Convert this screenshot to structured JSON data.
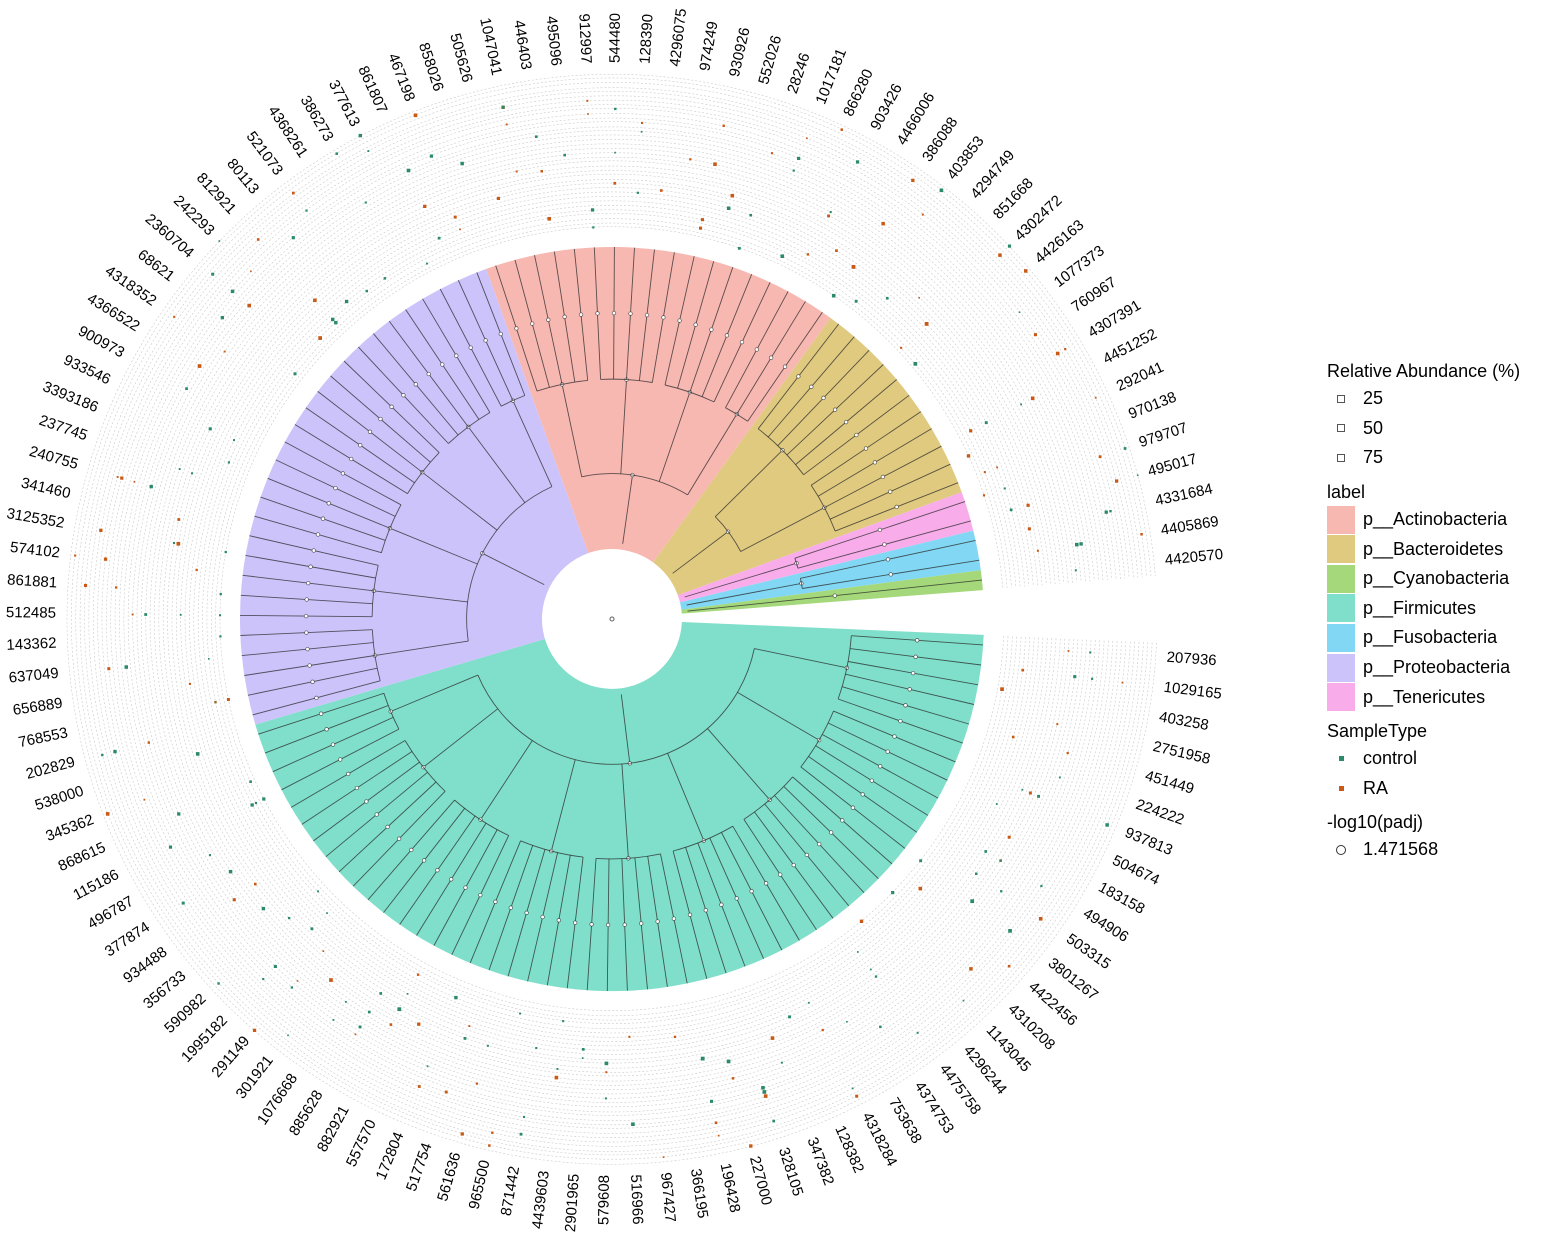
{
  "chart_data": {
    "type": "circular phylogenetic tree with heatmap rings",
    "tips_clockwise_from_right": [
      "207936",
      "1029165",
      "403258",
      "2751958",
      "451449",
      "224222",
      "937813",
      "504674",
      "183158",
      "494906",
      "503315",
      "3801267",
      "4422456",
      "4310208",
      "1143045",
      "4296244",
      "4475758",
      "4374753",
      "753638",
      "4318284",
      "128382",
      "347382",
      "328105",
      "227000",
      "196428",
      "366195",
      "967427",
      "516966",
      "579608",
      "2901965",
      "4439603",
      "871442",
      "965500",
      "561636",
      "517754",
      "172804",
      "557570",
      "882921",
      "885628",
      "1076668",
      "301921",
      "291149",
      "1995182",
      "590982",
      "356733",
      "934488",
      "377874",
      "496787",
      "115186",
      "868615",
      "345362",
      "538000",
      "202829",
      "768553",
      "656889",
      "637049",
      "143362",
      "512485",
      "861881",
      "574102",
      "3125352",
      "341460",
      "240755",
      "237745",
      "3393186",
      "933546",
      "900973",
      "4366522",
      "4318352",
      "68621",
      "2360704",
      "242293",
      "812921",
      "80113",
      "521073",
      "4368261",
      "386273",
      "377613",
      "861807",
      "467198",
      "858026",
      "505626",
      "1047041",
      "446403",
      "495096",
      "912997",
      "544480",
      "128390",
      "4296075",
      "974249",
      "930926",
      "552026",
      "28246",
      "1017181",
      "866280",
      "903426",
      "4466006",
      "386088",
      "403853",
      "4294749",
      "851668",
      "4302472",
      "4426163",
      "1077373",
      "760967",
      "4307391",
      "4451252",
      "292041",
      "970138",
      "979707",
      "495017",
      "4331684",
      "4405869",
      "4420570"
    ],
    "phyla": [
      {
        "name": "p__Firmicutes",
        "color": "#7fdfca",
        "tips": 52
      },
      {
        "name": "p__Proteobacteria",
        "color": "#cdc3fb",
        "tips": 28
      },
      {
        "name": "p__Actinobacteria",
        "color": "#f8b8b2",
        "tips": 18
      },
      {
        "name": "p__Bacteroidetes",
        "color": "#e0ca80",
        "tips": 11
      },
      {
        "name": "p__Tenericutes",
        "color": "#f8adea",
        "tips": 2
      },
      {
        "name": "p__Fusobacteria",
        "color": "#82d8f4",
        "tips": 2
      },
      {
        "name": "p__Cyanobacteria",
        "color": "#a4d87a",
        "tips": 1
      }
    ],
    "sample_types": [
      {
        "name": "control",
        "color": "#2a8a6a"
      },
      {
        "name": "RA",
        "color": "#c85a16"
      }
    ]
  },
  "legend": {
    "abundance_title": "Relative Abundance (%)",
    "abundance_values": [
      "25",
      "50",
      "75"
    ],
    "label_title": "label",
    "label_items": [
      "p__Actinobacteria",
      "p__Bacteroidetes",
      "p__Cyanobacteria",
      "p__Firmicutes",
      "p__Fusobacteria",
      "p__Proteobacteria",
      "p__Tenericutes"
    ],
    "label_colors": [
      "#f8b8b2",
      "#e0ca80",
      "#a4d87a",
      "#7fdfca",
      "#82d8f4",
      "#cdc3fb",
      "#f8adea"
    ],
    "sample_title": "SampleType",
    "sample_items": [
      "control",
      "RA"
    ],
    "sample_colors": [
      "#2a8a6a",
      "#c85a16"
    ],
    "padj_title": "-log10(padj)",
    "padj_value": "1.471568"
  }
}
